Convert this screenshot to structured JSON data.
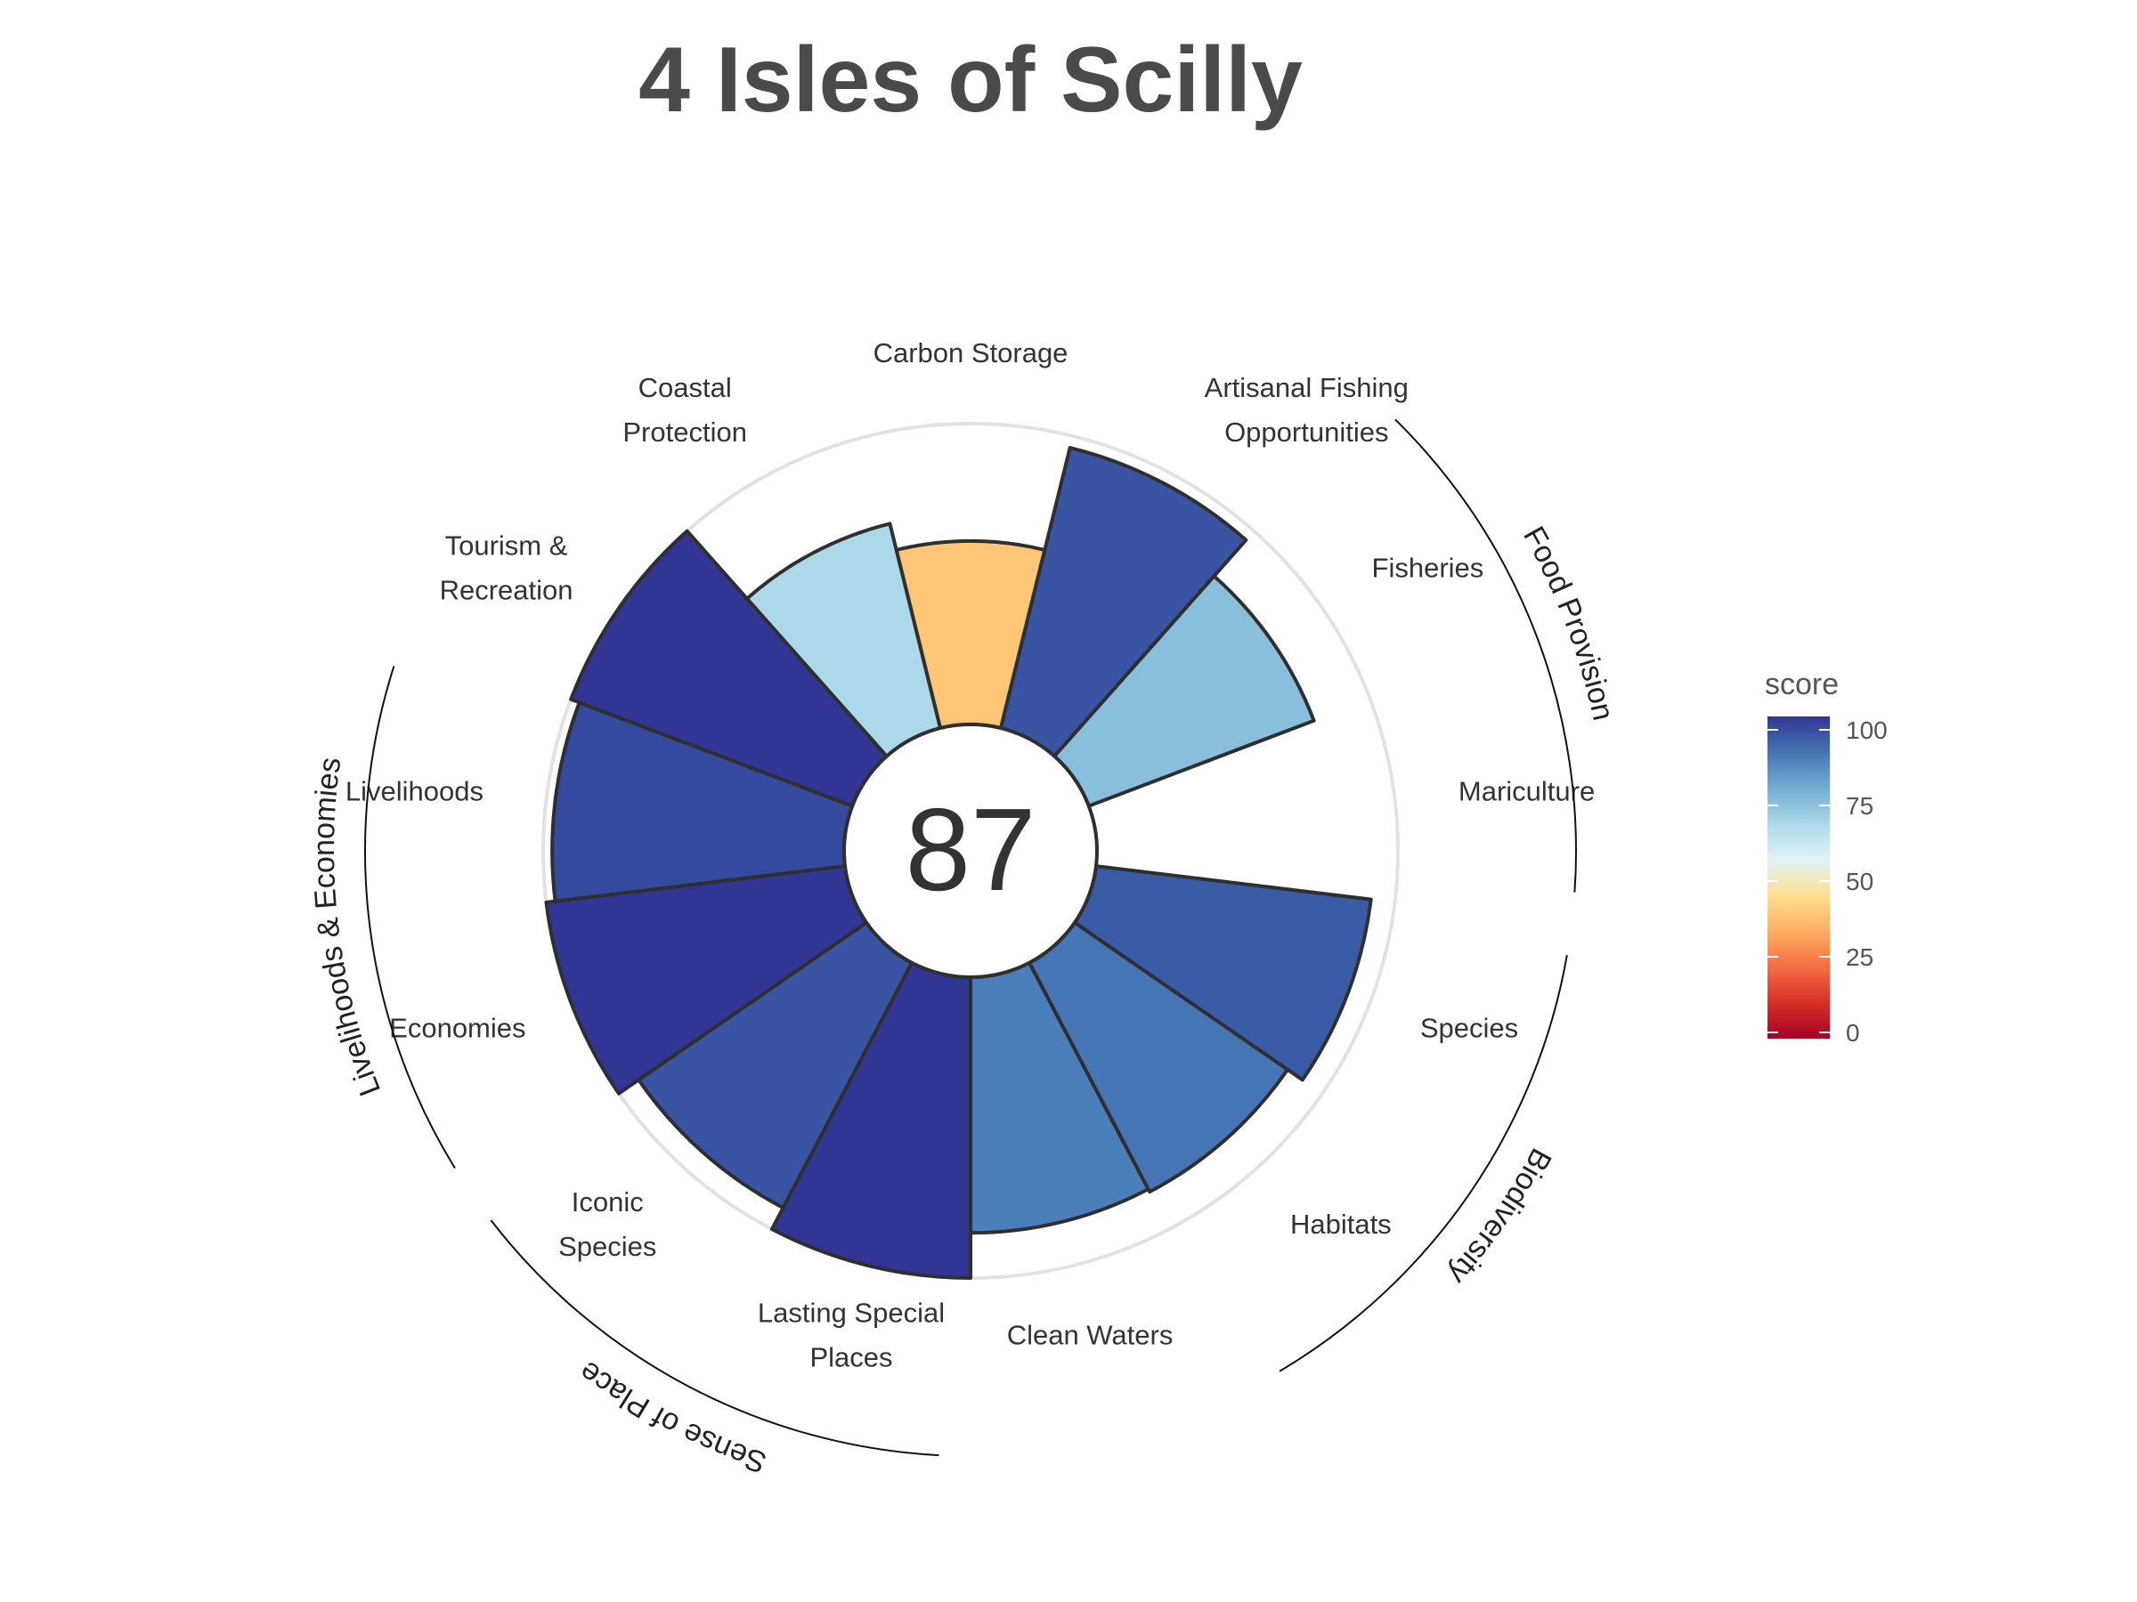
{
  "title": "4 Isles of Scilly",
  "center_score": "87",
  "legend": {
    "title": "score",
    "ticks": [
      "100",
      "75",
      "50",
      "25",
      "0"
    ],
    "tick_values": [
      100,
      75,
      50,
      25,
      0
    ],
    "colors": [
      "#a50026",
      "#d73027",
      "#f46d43",
      "#fdae61",
      "#fee090",
      "#e0f3f8",
      "#abd9e9",
      "#74add1",
      "#4575b4",
      "#313695"
    ]
  },
  "chart_data": {
    "type": "rose",
    "title": "4 Isles of Scilly",
    "ylim": [
      0,
      100
    ],
    "inner_radius_value": 0,
    "series": [
      {
        "goal": "Carbon Storage",
        "label_lines": [
          "Carbon Storage"
        ],
        "score": 61,
        "color": "#fdc677"
      },
      {
        "goal": "Artisanal Fishing Opportunities",
        "label_lines": [
          "Artisanal Fishing",
          "Opportunities"
        ],
        "score": 96,
        "color": "#3a54a4"
      },
      {
        "goal": "Fisheries",
        "label_lines": [
          "Fisheries"
        ],
        "score": 80,
        "color": "#89bedc"
      },
      {
        "goal": "Mariculture",
        "label_lines": [
          "Mariculture"
        ],
        "score": null,
        "color": null
      },
      {
        "goal": "Species",
        "label_lines": [
          "Species"
        ],
        "score": 92,
        "color": "#3a5ba6"
      },
      {
        "goal": "Habitats",
        "label_lines": [
          "Habitats"
        ],
        "score": 86,
        "color": "#4575b4"
      },
      {
        "goal": "Clean Waters",
        "label_lines": [
          "Clean Waters"
        ],
        "score": 85,
        "color": "#4a7fbb"
      },
      {
        "goal": "Lasting Special Places",
        "label_lines": [
          "Lasting Special",
          "Places"
        ],
        "score": 100,
        "color": "#313695"
      },
      {
        "goal": "Iconic Species",
        "label_lines": [
          "Iconic",
          "Species"
        ],
        "score": 92,
        "color": "#3a54a4"
      },
      {
        "goal": "Economies",
        "label_lines": [
          "Economies"
        ],
        "score": 100,
        "color": "#313695"
      },
      {
        "goal": "Livelihoods",
        "label_lines": [
          "Livelihoods"
        ],
        "score": 97,
        "color": "#334a9e"
      },
      {
        "goal": "Tourism & Recreation",
        "label_lines": [
          "Tourism &",
          "Recreation"
        ],
        "score": 100,
        "color": "#313695"
      },
      {
        "goal": "Coastal Protection",
        "label_lines": [
          "Coastal",
          "Protection"
        ],
        "score": 70,
        "color": "#abd9e9"
      }
    ],
    "groups": [
      {
        "name": "Food Provision",
        "goals": [
          "Fisheries",
          "Mariculture"
        ]
      },
      {
        "name": "Biodiversity",
        "goals": [
          "Species",
          "Habitats"
        ]
      },
      {
        "name": "Sense of Place",
        "goals": [
          "Lasting Special Places",
          "Iconic Species"
        ]
      },
      {
        "name": "Livelihoods & Economies",
        "goals": [
          "Economies",
          "Livelihoods"
        ]
      }
    ]
  }
}
